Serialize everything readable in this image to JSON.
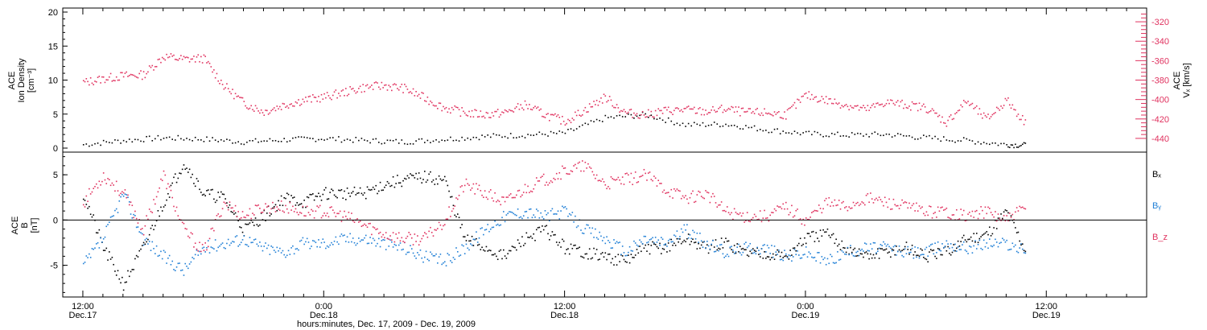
{
  "colors": {
    "black": "#000000",
    "red": "#e0325f",
    "blue": "#1f7fd6"
  },
  "footer_title": "hours:minutes, Dec. 17, 2009 - Dec. 19, 2009",
  "chart_data": [
    {
      "type": "scatter",
      "panel": "top",
      "left_axis": {
        "label_line1": "ACE",
        "label_line2": "Ion Density",
        "label_unit": "[cm⁻³]",
        "ylim": [
          0,
          20
        ],
        "ticks": [
          "0",
          "5",
          "10",
          "15",
          "20"
        ]
      },
      "right_axis": {
        "label_line1": "ACE",
        "label_line2": "Vₓ [km/s]",
        "ylim": [
          -450,
          -310
        ],
        "ticks": [
          "-440",
          "-420",
          "-400",
          "-380",
          "-360",
          "-340",
          "-320"
        ]
      },
      "x_ticks_hours": [
        0,
        12,
        24,
        36,
        48
      ],
      "x_tick_labels": [
        [
          "12:00",
          "Dec.17"
        ],
        [
          "0:00",
          "Dec.18"
        ],
        [
          "12:00",
          "Dec.18"
        ],
        [
          "0:00",
          "Dec.19"
        ],
        [
          "12:00",
          "Dec.19"
        ]
      ],
      "xlim_hours": [
        -1,
        53
      ],
      "series": [
        {
          "color": "black",
          "axis": "left",
          "x": [
            0,
            2,
            4,
            6,
            8,
            10,
            12,
            14,
            16,
            18,
            20,
            22,
            24,
            26,
            28,
            30,
            32,
            34,
            36,
            38,
            40,
            42,
            44,
            46,
            47
          ],
          "y": [
            0.6,
            1.2,
            1.6,
            1.4,
            1.0,
            1.3,
            1.5,
            1.2,
            1.0,
            1.4,
            1.8,
            2.0,
            2.3,
            4.5,
            5.0,
            3.5,
            3.6,
            2.8,
            2.2,
            2.0,
            2.1,
            1.6,
            1.2,
            0.6,
            0.5
          ]
        },
        {
          "color": "red",
          "axis": "right",
          "x": [
            0,
            1,
            2,
            3,
            4,
            5,
            6,
            7,
            8,
            9,
            10,
            11,
            12,
            13,
            14,
            15,
            16,
            17,
            18,
            19,
            20,
            21,
            22,
            23,
            24,
            25,
            26,
            27,
            28,
            29,
            30,
            31,
            32,
            33,
            34,
            35,
            36,
            37,
            38,
            39,
            40,
            41,
            42,
            43,
            44,
            45,
            46,
            47
          ],
          "y": [
            -382,
            -378,
            -375,
            -374,
            -355,
            -358,
            -357,
            -385,
            -403,
            -412,
            -405,
            -400,
            -397,
            -392,
            -387,
            -385,
            -388,
            -398,
            -408,
            -413,
            -415,
            -413,
            -405,
            -415,
            -422,
            -410,
            -397,
            -413,
            -415,
            -411,
            -410,
            -412,
            -409,
            -413,
            -413,
            -415,
            -395,
            -400,
            -405,
            -410,
            -402,
            -405,
            -408,
            -423,
            -401,
            -420,
            -400,
            -425
          ]
        }
      ]
    },
    {
      "type": "scatter",
      "panel": "bottom",
      "left_axis": {
        "label_line1": "ACE",
        "label_line2": "B",
        "label_unit": "[nT]",
        "ylim": [
          -8.5,
          7.5
        ],
        "ticks": [
          "-5",
          "0",
          "5"
        ]
      },
      "legend": [
        {
          "label": "Bₓ",
          "color": "black"
        },
        {
          "label": "Bᵧ",
          "color": "blue"
        },
        {
          "label": "B_z",
          "color": "red"
        }
      ],
      "xlim_hours": [
        -1,
        53
      ],
      "series": [
        {
          "name": "Bₓ",
          "color": "black",
          "x": [
            0,
            1,
            2,
            3,
            4,
            5,
            6,
            7,
            8,
            9,
            10,
            11,
            12,
            13,
            14,
            15,
            16,
            17,
            18,
            19,
            20,
            21,
            22,
            23,
            24,
            25,
            26,
            27,
            28,
            29,
            30,
            31,
            32,
            33,
            34,
            35,
            36,
            37,
            38,
            39,
            40,
            41,
            42,
            43,
            44,
            45,
            46,
            47
          ],
          "y": [
            3.0,
            -3.0,
            -7.0,
            -3.0,
            2.0,
            6.5,
            3.0,
            2.5,
            -1.0,
            0.5,
            2.5,
            2.0,
            3.0,
            3.0,
            3.0,
            4.0,
            4.5,
            4.8,
            4.5,
            -2.0,
            -3.0,
            -4.0,
            -2.0,
            -1.0,
            -3.0,
            -3.5,
            -4.0,
            -4.5,
            -3.0,
            -3.0,
            -2.0,
            -3.0,
            -2.5,
            -3.5,
            -3.5,
            -4.0,
            -2.0,
            -1.5,
            -3.0,
            -4.0,
            -3.5,
            -3.0,
            -4.0,
            -3.5,
            -2.0,
            -1.5,
            1.0,
            -3.5
          ]
        },
        {
          "name": "Bᵧ",
          "color": "blue",
          "x": [
            0,
            1,
            2,
            3,
            4,
            5,
            6,
            7,
            8,
            9,
            10,
            11,
            12,
            13,
            14,
            15,
            16,
            17,
            18,
            19,
            20,
            21,
            22,
            23,
            24,
            25,
            26,
            27,
            28,
            29,
            30,
            31,
            32,
            33,
            34,
            35,
            36,
            37,
            38,
            39,
            40,
            41,
            42,
            43,
            44,
            45,
            46,
            47
          ],
          "y": [
            -5.0,
            -2.0,
            3.0,
            -2.0,
            -4.0,
            -5.5,
            -3.0,
            -2.5,
            -2.0,
            -3.0,
            -3.5,
            -2.5,
            -2.5,
            -2.0,
            -2.0,
            -2.5,
            -3.0,
            -4.0,
            -4.5,
            -3.0,
            -1.0,
            0.5,
            1.0,
            0.5,
            1.0,
            -1.0,
            -2.0,
            -3.5,
            -2.0,
            -2.5,
            -1.0,
            -2.5,
            -3.5,
            -3.0,
            -3.0,
            -4.0,
            -3.5,
            -4.5,
            -3.5,
            -3.0,
            -3.0,
            -3.5,
            -3.5,
            -2.5,
            -3.0,
            -2.5,
            -2.5,
            -3.5
          ]
        },
        {
          "name": "B_z",
          "color": "red",
          "x": [
            0,
            1,
            2,
            3,
            4,
            5,
            6,
            7,
            8,
            9,
            10,
            11,
            12,
            13,
            14,
            15,
            16,
            17,
            18,
            19,
            20,
            21,
            22,
            23,
            24,
            25,
            26,
            27,
            28,
            29,
            30,
            31,
            32,
            33,
            34,
            35,
            36,
            37,
            38,
            39,
            40,
            41,
            42,
            43,
            44,
            45,
            46,
            47
          ],
          "y": [
            2.0,
            5.0,
            3.0,
            -1.0,
            5.0,
            -1.0,
            -3.5,
            2.0,
            0.5,
            1.5,
            1.5,
            1.0,
            1.0,
            0.5,
            -0.5,
            -1.5,
            -2.0,
            -2.0,
            0.0,
            4.0,
            3.0,
            2.0,
            3.5,
            4.5,
            5.5,
            6.0,
            4.0,
            4.5,
            5.0,
            3.5,
            2.5,
            3.0,
            1.0,
            0.5,
            0.5,
            1.5,
            0.0,
            2.0,
            1.5,
            2.5,
            2.0,
            1.5,
            1.0,
            1.0,
            0.5,
            1.0,
            0.0,
            1.5
          ]
        }
      ]
    }
  ]
}
